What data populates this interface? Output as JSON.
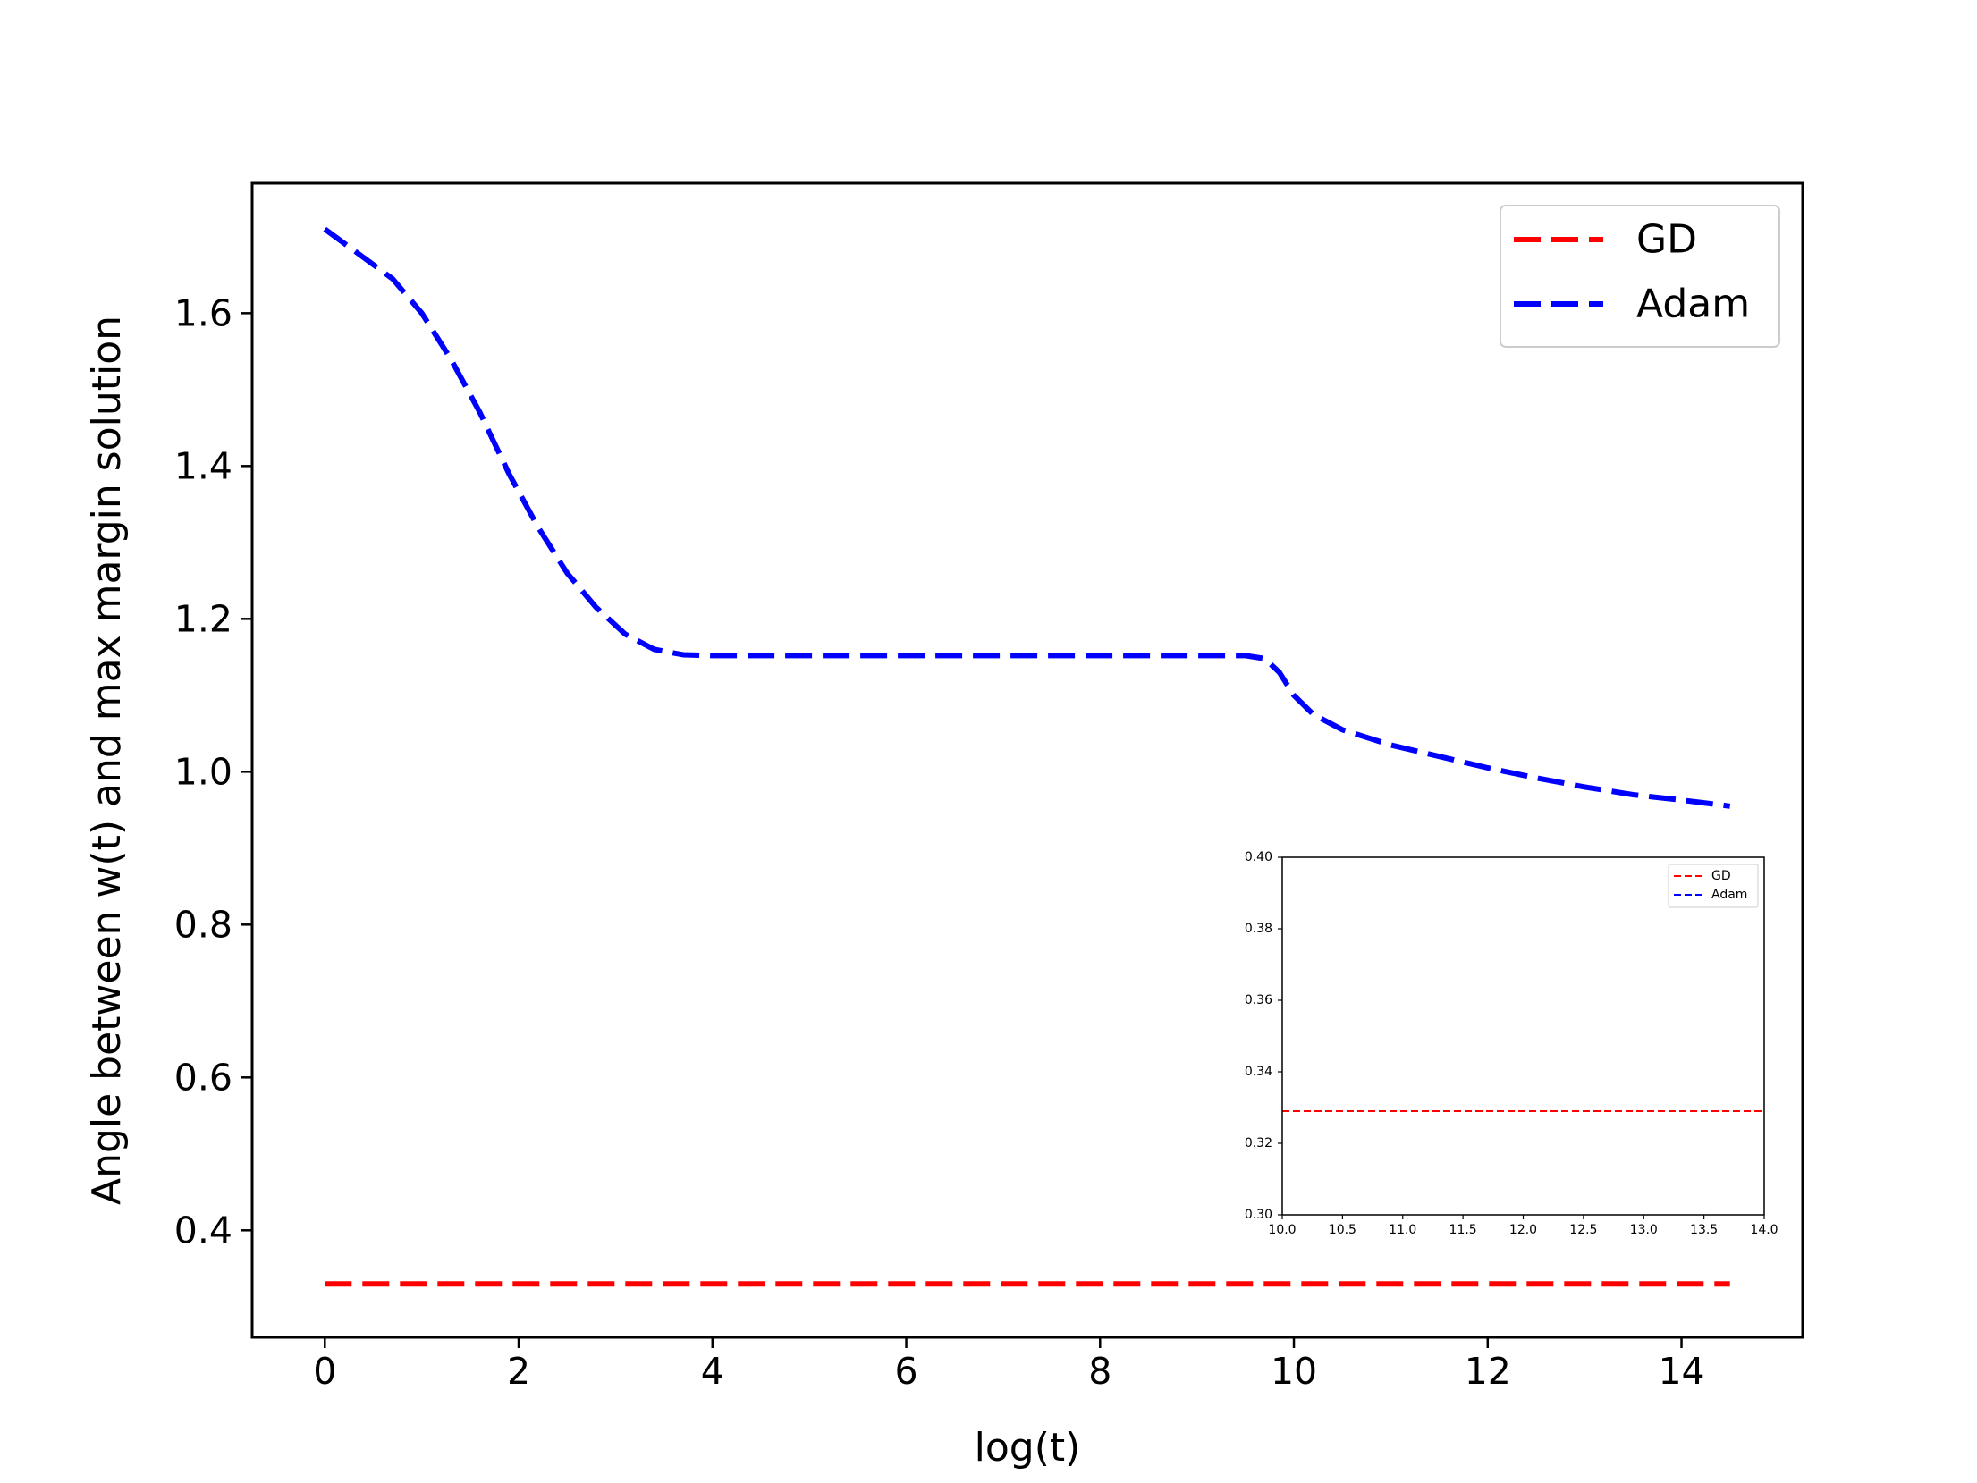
{
  "chart_data": [
    {
      "type": "line",
      "xlabel": "log(t)",
      "ylabel": "Angle between w(t) and max margin solution",
      "xlim": [
        -0.75,
        15.25
      ],
      "ylim": [
        0.26,
        1.77
      ],
      "xticks": [
        0,
        2,
        4,
        6,
        8,
        10,
        12,
        14
      ],
      "yticks": [
        0.4,
        0.6,
        0.8,
        1.0,
        1.2,
        1.4,
        1.6
      ],
      "xtick_labels": [
        "0",
        "2",
        "4",
        "6",
        "8",
        "10",
        "12",
        "14"
      ],
      "ytick_labels": [
        "0.4",
        "0.6",
        "0.8",
        "1.0",
        "1.2",
        "1.4",
        "1.6"
      ],
      "legend_position": "upper right",
      "grid": false,
      "series": [
        {
          "name": "GD",
          "color": "#ff0000",
          "style": "dashed",
          "x": [
            0,
            14.5
          ],
          "y": [
            0.33,
            0.33
          ]
        },
        {
          "name": "Adam",
          "color": "#0000ff",
          "style": "dashed",
          "x": [
            0,
            0.7,
            1.0,
            1.3,
            1.6,
            1.9,
            2.2,
            2.5,
            2.8,
            3.1,
            3.4,
            3.7,
            4.0,
            4.5,
            5,
            6,
            7,
            8,
            9,
            9.5,
            9.7,
            9.85,
            10.0,
            10.2,
            10.5,
            11,
            11.5,
            12,
            12.5,
            13,
            13.5,
            14,
            14.5
          ],
          "y": [
            1.71,
            1.645,
            1.6,
            1.54,
            1.47,
            1.39,
            1.32,
            1.26,
            1.215,
            1.18,
            1.16,
            1.153,
            1.152,
            1.152,
            1.152,
            1.152,
            1.152,
            1.152,
            1.152,
            1.152,
            1.148,
            1.13,
            1.1,
            1.075,
            1.055,
            1.035,
            1.02,
            1.005,
            0.992,
            0.98,
            0.97,
            0.963,
            0.955
          ]
        }
      ]
    },
    {
      "type": "line",
      "xlim": [
        10.0,
        14.0
      ],
      "ylim": [
        0.3,
        0.4
      ],
      "xticks": [
        10.0,
        10.5,
        11.0,
        11.5,
        12.0,
        12.5,
        13.0,
        13.5,
        14.0
      ],
      "yticks": [
        0.3,
        0.32,
        0.34,
        0.36,
        0.38,
        0.4
      ],
      "xtick_labels": [
        "10.0",
        "10.5",
        "11.0",
        "11.5",
        "12.0",
        "12.5",
        "13.0",
        "13.5",
        "14.0"
      ],
      "ytick_labels": [
        "0.30",
        "0.32",
        "0.34",
        "0.36",
        "0.38",
        "0.40"
      ],
      "legend_position": "upper right",
      "grid": false,
      "series": [
        {
          "name": "GD",
          "color": "#ff0000",
          "style": "dashed",
          "x": [
            10.0,
            14.0
          ],
          "y": [
            0.329,
            0.329
          ]
        },
        {
          "name": "Adam",
          "color": "#0000ff",
          "style": "dashed",
          "x": [],
          "y": []
        }
      ]
    }
  ]
}
